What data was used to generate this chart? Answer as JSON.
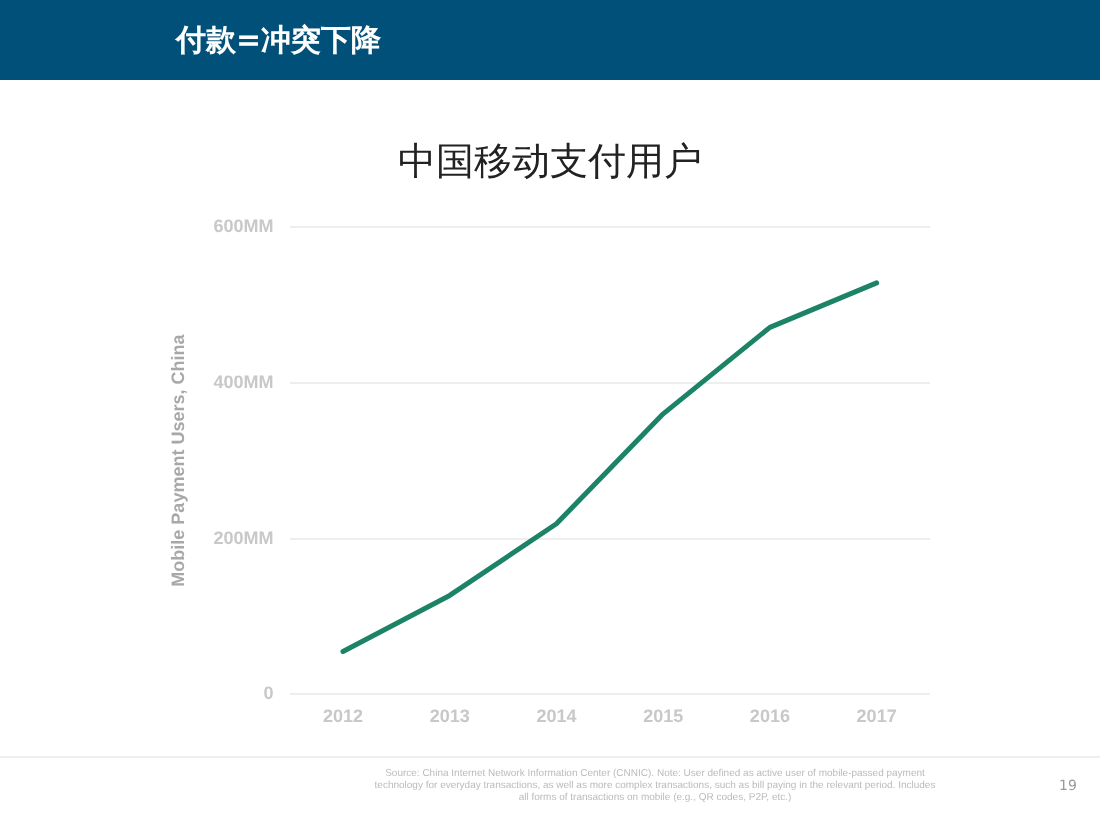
{
  "chart_data": {
    "type": "line",
    "subtitle": "付款=冲突下降",
    "title": "中国移动支付用户",
    "ylabel": "Mobile Payment Users, China",
    "categories": [
      "2012",
      "2013",
      "2014",
      "2015",
      "2016",
      "2017"
    ],
    "series": [
      {
        "color": "#1d8366",
        "values": [
          55,
          127,
          219,
          360,
          471,
          528
        ]
      }
    ],
    "ylim": [
      0,
      600
    ],
    "yticks": [
      {
        "value": 0,
        "label": "0"
      },
      {
        "value": 200,
        "label": "200MM"
      },
      {
        "value": 400,
        "label": "400MM"
      },
      {
        "value": 600,
        "label": "600MM"
      }
    ],
    "grid": "y",
    "legend": false,
    "marker": "none",
    "line_style": "solid",
    "annotations": [
      "Source: China Internet Network Information Center (CNNIC).  Note: User defined as active user of mobile-passed payment technology for everyday transactions, as well as more complex transactions, such as bill paying in the relevant period. Includes all forms of transactions on mobile (e.g., QR codes, P2P, etc.)",
      "19"
    ]
  }
}
